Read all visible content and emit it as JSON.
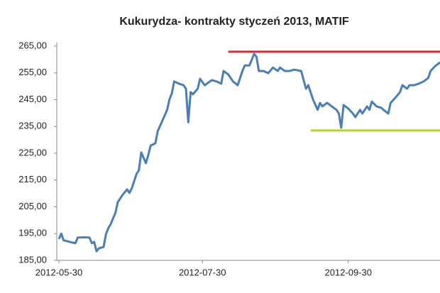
{
  "chart_data": {
    "type": "line",
    "title": "Kukurydza- kontrakty styczeń 2013, MATIF",
    "x": [
      "2012-05-30",
      "2012-05-31",
      "2012-06-01",
      "2012-06-04",
      "2012-06-06",
      "2012-06-07",
      "2012-06-10",
      "2012-06-12",
      "2012-06-13",
      "2012-06-14",
      "2012-06-15",
      "2012-06-16",
      "2012-06-18",
      "2012-06-19",
      "2012-06-20",
      "2012-06-21",
      "2012-06-23",
      "2012-06-24",
      "2012-06-26",
      "2012-06-28",
      "2012-06-29",
      "2012-06-30",
      "2012-07-02",
      "2012-07-03",
      "2012-07-04",
      "2012-07-06",
      "2012-07-07",
      "2012-07-08",
      "2012-07-10",
      "2012-07-11",
      "2012-07-13",
      "2012-07-15",
      "2012-07-16",
      "2012-07-17",
      "2012-07-18",
      "2012-07-20",
      "2012-07-22",
      "2012-07-23",
      "2012-07-24",
      "2012-07-25",
      "2012-07-26",
      "2012-07-28",
      "2012-07-29",
      "2012-07-31",
      "2012-08-03",
      "2012-08-05",
      "2012-08-07",
      "2012-08-08",
      "2012-08-10",
      "2012-08-12",
      "2012-08-14",
      "2012-08-16",
      "2012-08-17",
      "2012-08-19",
      "2012-08-21",
      "2012-08-22",
      "2012-08-23",
      "2012-08-25",
      "2012-08-27",
      "2012-08-29",
      "2012-08-31",
      "2012-09-01",
      "2012-09-03",
      "2012-09-05",
      "2012-09-07",
      "2012-09-10",
      "2012-09-12",
      "2012-09-13",
      "2012-09-15",
      "2012-09-17",
      "2012-09-18",
      "2012-09-19",
      "2012-09-21",
      "2012-09-23",
      "2012-09-25",
      "2012-09-26",
      "2012-09-27",
      "2012-09-28",
      "2012-09-30",
      "2012-10-02",
      "2012-10-03",
      "2012-10-05",
      "2012-10-06",
      "2012-10-08",
      "2012-10-09",
      "2012-10-10",
      "2012-10-12",
      "2012-10-14",
      "2012-10-15",
      "2012-10-17",
      "2012-10-18",
      "2012-10-20",
      "2012-10-22",
      "2012-10-23",
      "2012-10-25",
      "2012-10-26",
      "2012-10-28",
      "2012-10-30",
      "2012-11-01",
      "2012-11-03",
      "2012-11-04",
      "2012-11-06",
      "2012-11-08"
    ],
    "series": [
      {
        "color": "#4a7ebb",
        "values": [
          193,
          195,
          192.5,
          191.8,
          191.4,
          193.5,
          193.6,
          193.5,
          191.4,
          191.9,
          188.4,
          189.5,
          190,
          194.8,
          197,
          198.5,
          202.7,
          206.7,
          209.4,
          211.5,
          210.2,
          212,
          217.3,
          218.6,
          225.3,
          221.3,
          224.4,
          227.9,
          228.7,
          233.2,
          237.2,
          241.2,
          245.1,
          247.3,
          251.8,
          251,
          250.4,
          249.1,
          236.6,
          247.8,
          247,
          249.1,
          252.8,
          250.4,
          252.3,
          251.8,
          251,
          255.7,
          254.4,
          251.8,
          250.4,
          255.7,
          257.8,
          257.8,
          262.1,
          261,
          255.7,
          255.7,
          254.9,
          257,
          255.7,
          257,
          255.7,
          255.7,
          256.2,
          255.7,
          249.1,
          250.4,
          245.1,
          241.2,
          243.8,
          242.5,
          243.8,
          242.5,
          241.2,
          239.8,
          234.5,
          243,
          241.7,
          239.8,
          238.5,
          241.2,
          239.8,
          242.5,
          241.2,
          244.3,
          242.5,
          242,
          241.2,
          239.8,
          243.8,
          245.7,
          247.8,
          250.4,
          249.1,
          250.4,
          250.4,
          251,
          251.8,
          253.1,
          255.7,
          257.6,
          258.9
        ]
      }
    ],
    "reference_lines": [
      {
        "value": 262.9,
        "from": "2012-08-10",
        "color": "#e8262b"
      },
      {
        "value": 233.5,
        "from": "2012-09-14",
        "color": "#b5d334"
      }
    ],
    "xlim": [
      "2012-05-30",
      "2012-11-08"
    ],
    "xticks": [
      "2012-05-30",
      "2012-07-30",
      "2012-09-30"
    ],
    "ylim": [
      185,
      265
    ],
    "yticks": [
      {
        "value": 185,
        "label": "185,00"
      },
      {
        "value": 195,
        "label": "195,00"
      },
      {
        "value": 205,
        "label": "205,00"
      },
      {
        "value": 215,
        "label": "215,00"
      },
      {
        "value": 225,
        "label": "225,00"
      },
      {
        "value": 235,
        "label": "235,00"
      },
      {
        "value": 245,
        "label": "245,00"
      },
      {
        "value": 255,
        "label": "255,00"
      },
      {
        "value": 265,
        "label": "265,00"
      }
    ],
    "grid": false
  }
}
